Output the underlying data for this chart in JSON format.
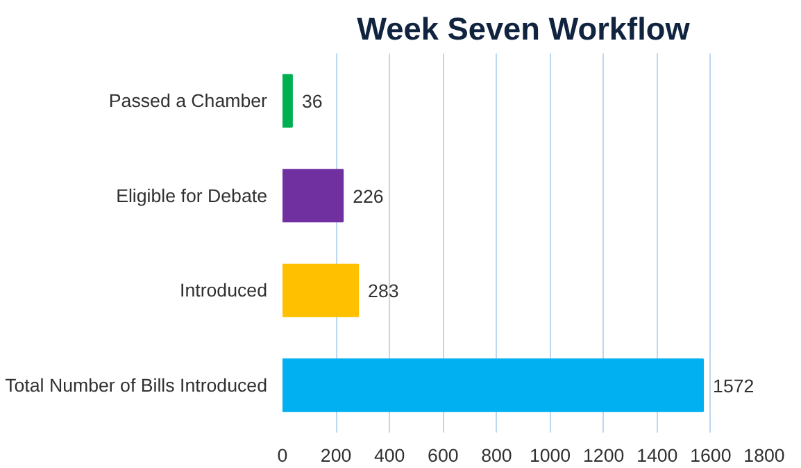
{
  "chart_data": {
    "type": "bar",
    "orientation": "horizontal",
    "title": "Week Seven Workflow",
    "categories": [
      "Passed a Chamber",
      "Eligible for Debate",
      "Introduced",
      "Total Number of Bills Introduced"
    ],
    "values": [
      36,
      226,
      283,
      1572
    ],
    "colors": [
      "#00b050",
      "#7030a0",
      "#ffc000",
      "#00b0f0"
    ],
    "xlim": [
      0,
      1800
    ],
    "xticks": [
      0,
      200,
      400,
      600,
      800,
      1000,
      1200,
      1400,
      1600,
      1800
    ],
    "grid": "x",
    "data_labels": true
  }
}
